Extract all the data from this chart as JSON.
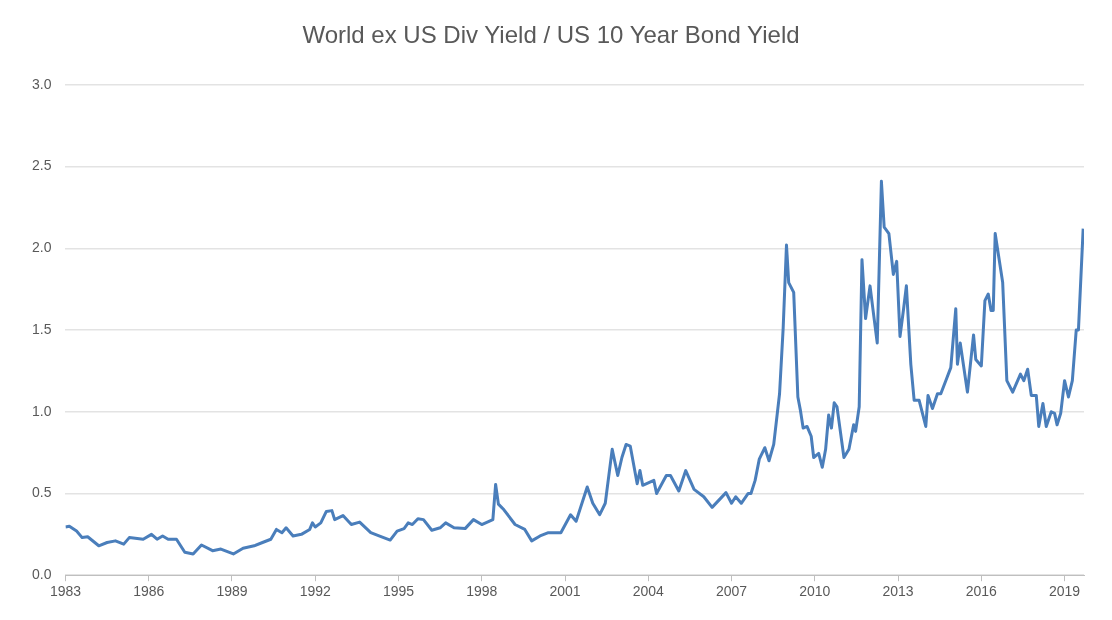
{
  "chart_data": {
    "type": "line",
    "title": "World ex US Div Yield / US 10 Year Bond Yield",
    "x": [
      1983.0,
      1983.14,
      1983.4,
      1983.6,
      1983.8,
      1984.2,
      1984.5,
      1984.8,
      1985.1,
      1985.3,
      1985.8,
      1986.1,
      1986.3,
      1986.5,
      1986.7,
      1987.0,
      1987.3,
      1987.6,
      1987.9,
      1988.3,
      1988.6,
      1989.05,
      1989.4,
      1989.8,
      1990.1,
      1990.4,
      1990.6,
      1990.8,
      1990.95,
      1991.2,
      1991.5,
      1991.8,
      1991.9,
      1992.0,
      1992.2,
      1992.4,
      1992.6,
      1992.7,
      1993.0,
      1993.3,
      1993.6,
      1994.0,
      1994.3,
      1994.7,
      1994.95,
      1995.2,
      1995.35,
      1995.5,
      1995.7,
      1995.9,
      1996.2,
      1996.5,
      1996.7,
      1997.0,
      1997.4,
      1997.7,
      1998.0,
      1998.4,
      1998.5,
      1998.6,
      1998.8,
      1999.2,
      1999.55,
      1999.8,
      2000.1,
      2000.4,
      2000.85,
      2001.2,
      2001.4,
      2001.8,
      2002.0,
      2002.25,
      2002.45,
      2002.7,
      2002.9,
      2003.05,
      2003.2,
      2003.35,
      2003.6,
      2003.7,
      2003.8,
      2004.2,
      2004.3,
      2004.65,
      2004.8,
      2005.1,
      2005.35,
      2005.65,
      2006.0,
      2006.3,
      2006.8,
      2007.0,
      2007.15,
      2007.35,
      2007.6,
      2007.7,
      2007.85,
      2008.0,
      2008.2,
      2008.35,
      2008.52,
      2008.73,
      2008.86,
      2008.98,
      2009.06,
      2009.24,
      2009.39,
      2009.48,
      2009.58,
      2009.72,
      2009.87,
      2009.96,
      2010.14,
      2010.27,
      2010.39,
      2010.5,
      2010.6,
      2010.7,
      2010.8,
      2011.05,
      2011.23,
      2011.4,
      2011.47,
      2011.6,
      2011.7,
      2011.83,
      2011.99,
      2012.1,
      2012.25,
      2012.4,
      2012.5,
      2012.67,
      2012.83,
      2012.95,
      2013.07,
      2013.2,
      2013.3,
      2013.46,
      2013.58,
      2013.76,
      2014.0,
      2014.08,
      2014.24,
      2014.42,
      2014.54,
      2014.72,
      2014.9,
      2015.08,
      2015.14,
      2015.24,
      2015.5,
      2015.72,
      2015.8,
      2016.0,
      2016.13,
      2016.25,
      2016.35,
      2016.43,
      2016.5,
      2016.77,
      2016.92,
      2017.13,
      2017.41,
      2017.53,
      2017.67,
      2017.8,
      2017.98,
      2018.07,
      2018.22,
      2018.34,
      2018.52,
      2018.64,
      2018.73,
      2018.86,
      2019.0,
      2019.14,
      2019.28,
      2019.42,
      2019.5,
      2019.67
    ],
    "series": [
      {
        "color": "#4a7ebb",
        "values": [
          0.295,
          0.3,
          0.27,
          0.23,
          0.235,
          0.18,
          0.2,
          0.21,
          0.19,
          0.23,
          0.22,
          0.25,
          0.22,
          0.24,
          0.22,
          0.22,
          0.14,
          0.13,
          0.185,
          0.15,
          0.16,
          0.13,
          0.165,
          0.18,
          0.2,
          0.22,
          0.28,
          0.26,
          0.29,
          0.24,
          0.25,
          0.28,
          0.32,
          0.295,
          0.32,
          0.39,
          0.395,
          0.34,
          0.365,
          0.31,
          0.325,
          0.26,
          0.24,
          0.215,
          0.27,
          0.285,
          0.32,
          0.31,
          0.345,
          0.34,
          0.275,
          0.29,
          0.32,
          0.29,
          0.285,
          0.34,
          0.31,
          0.34,
          0.555,
          0.435,
          0.4,
          0.31,
          0.28,
          0.21,
          0.24,
          0.26,
          0.26,
          0.37,
          0.33,
          0.54,
          0.44,
          0.37,
          0.44,
          0.77,
          0.61,
          0.72,
          0.8,
          0.79,
          0.56,
          0.64,
          0.55,
          0.58,
          0.5,
          0.61,
          0.61,
          0.515,
          0.64,
          0.525,
          0.48,
          0.415,
          0.505,
          0.44,
          0.48,
          0.44,
          0.5,
          0.5,
          0.58,
          0.71,
          0.78,
          0.7,
          0.8,
          1.11,
          1.51,
          2.02,
          1.79,
          1.73,
          1.09,
          1.01,
          0.9,
          0.91,
          0.85,
          0.72,
          0.745,
          0.66,
          0.77,
          0.98,
          0.9,
          1.055,
          1.03,
          0.72,
          0.77,
          0.92,
          0.88,
          1.03,
          1.93,
          1.57,
          1.77,
          1.62,
          1.42,
          2.41,
          2.13,
          2.09,
          1.84,
          1.92,
          1.46,
          1.63,
          1.77,
          1.29,
          1.07,
          1.07,
          0.91,
          1.1,
          1.02,
          1.11,
          1.11,
          1.19,
          1.27,
          1.63,
          1.29,
          1.42,
          1.12,
          1.47,
          1.32,
          1.28,
          1.68,
          1.72,
          1.62,
          1.62,
          2.09,
          1.79,
          1.19,
          1.12,
          1.23,
          1.19,
          1.26,
          1.1,
          1.1,
          0.91,
          1.05,
          0.91,
          1.0,
          0.99,
          0.92,
          0.99,
          1.19,
          1.09,
          1.19,
          1.5,
          1.5,
          2.12
        ]
      }
    ],
    "xlim": [
      1983,
      2019.7
    ],
    "xticks": [
      1983,
      1986,
      1989,
      1992,
      1995,
      1998,
      2001,
      2004,
      2007,
      2010,
      2013,
      2016,
      2019
    ],
    "ylim": [
      0,
      3
    ],
    "yticks": [
      {
        "value": 0,
        "label": "0.0"
      },
      {
        "value": 0.5,
        "label": "0.5"
      },
      {
        "value": 1,
        "label": "1.0"
      },
      {
        "value": 1.5,
        "label": "1.5"
      },
      {
        "value": 2,
        "label": "2.0"
      },
      {
        "value": 2.5,
        "label": "2.5"
      },
      {
        "value": 3,
        "label": "3.0"
      }
    ],
    "grid": "y",
    "legend": false,
    "marker": "none",
    "line_style": "solid"
  }
}
